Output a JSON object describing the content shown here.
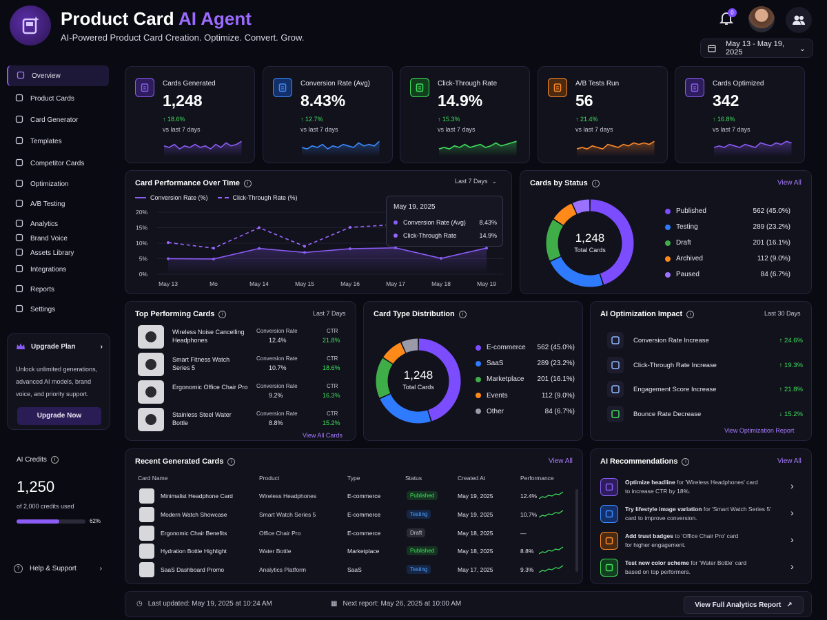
{
  "header": {
    "title_main": "Product Card ",
    "title_accent": "AI Agent",
    "subtitle": "AI-Powered Product Card Creation. Optimize. Convert. Grow.",
    "notification_count": "0",
    "date_range": "May 13 - May 19, 2025"
  },
  "sidebar": {
    "items": [
      {
        "label": "Overview",
        "icon": "home-icon"
      },
      {
        "label": "Product Cards",
        "icon": "cards-icon"
      },
      {
        "label": "Card Generator",
        "icon": "generator-icon"
      },
      {
        "label": "Templates",
        "icon": "templates-icon"
      },
      {
        "label": "Competitor Cards",
        "icon": "competitor-icon"
      },
      {
        "label": "Optimization",
        "icon": "optimization-icon"
      },
      {
        "label": "A/B Testing",
        "icon": "ab-test-icon"
      },
      {
        "label": "Analytics",
        "icon": "analytics-icon"
      },
      {
        "label": "Brand Voice",
        "icon": "brand-voice-icon"
      },
      {
        "label": "Assets Library",
        "icon": "assets-icon"
      },
      {
        "label": "Integrations",
        "icon": "integrations-icon"
      },
      {
        "label": "Reports",
        "icon": "reports-icon"
      },
      {
        "label": "Settings",
        "icon": "settings-icon"
      }
    ],
    "upgrade": {
      "title": "Upgrade Plan",
      "text": "Unlock unlimited generations, advanced AI models, brand voice, and priority support.",
      "button": "Upgrade Now"
    },
    "credits": {
      "title": "AI Credits",
      "value": "1,250",
      "sub": "of 2,000 credits used",
      "percent_label": "62%",
      "percent": 62
    },
    "help": "Help & Support"
  },
  "kpis": [
    {
      "label": "Cards Generated",
      "value": "1,248",
      "delta": "↑ 18.6%",
      "vs": "vs last 7 days",
      "color": "#8b5cf6",
      "bg": "#2d1d5c",
      "icon": "clipboard-icon"
    },
    {
      "label": "Conversion Rate (Avg)",
      "value": "8.43%",
      "delta": "↑ 12.7%",
      "vs": "vs last 7 days",
      "color": "#3b8bff",
      "bg": "#14306a",
      "icon": "clipboard-check-icon"
    },
    {
      "label": "Click-Through Rate",
      "value": "14.9%",
      "delta": "↑ 15.3%",
      "vs": "vs last 7 days",
      "color": "#3ee05a",
      "bg": "#12401f",
      "icon": "cursor-icon"
    },
    {
      "label": "A/B Tests Run",
      "value": "56",
      "delta": "↑ 21.4%",
      "vs": "vs last 7 days",
      "color": "#ff8a2a",
      "bg": "#4a2a10",
      "icon": "mail-icon"
    },
    {
      "label": "Cards Optimized",
      "value": "342",
      "delta": "↑ 16.8%",
      "vs": "vs last 7 days",
      "color": "#8b5cf6",
      "bg": "#2d1d5c",
      "icon": "shield-icon"
    }
  ],
  "performance": {
    "title": "Card Performance Over Time",
    "range": "Last 7 Days",
    "legend": [
      "Conversion Rate (%)",
      "Click-Through Rate (%)"
    ],
    "tooltip": {
      "date": "May 19, 2025",
      "rows": [
        [
          "Conversion Rate (Avg)",
          "8.43%"
        ],
        [
          "Click-Through Rate",
          "14.9%"
        ]
      ]
    }
  },
  "status": {
    "title": "Cards by Status",
    "view_all": "View All",
    "center_value": "1,248",
    "center_label": "Total Cards",
    "rows": [
      {
        "label": "Published",
        "value": "562 (45.0%)",
        "color": "#7c4dff"
      },
      {
        "label": "Testing",
        "value": "289 (23.2%)",
        "color": "#2f7bff"
      },
      {
        "label": "Draft",
        "value": "201 (16.1%)",
        "color": "#3fae48"
      },
      {
        "label": "Archived",
        "value": "112 (9.0%)",
        "color": "#ff8a1a"
      },
      {
        "label": "Paused",
        "value": "84 (6.7%)",
        "color": "#9a72ff"
      }
    ]
  },
  "top_cards": {
    "title": "Top Performing Cards",
    "range": "Last 7 Days",
    "conv_label": "Conversion Rate",
    "ctr_label": "CTR",
    "rows": [
      {
        "name": "Wireless Noise Cancelling Headphones",
        "conv": "12.4%",
        "ctr": "21.8%",
        "thumb": "headphones-thumb"
      },
      {
        "name": "Smart Fitness Watch Series 5",
        "conv": "10.7%",
        "ctr": "18.6%",
        "thumb": "watch-thumb"
      },
      {
        "name": "Ergonomic Office Chair Pro",
        "conv": "9.2%",
        "ctr": "16.3%",
        "thumb": "chair-thumb"
      },
      {
        "name": "Stainless Steel Water Bottle",
        "conv": "8.8%",
        "ctr": "15.2%",
        "thumb": "bottle-thumb"
      }
    ],
    "view_all": "View All Cards"
  },
  "type_dist": {
    "title": "Card Type Distribution",
    "center_value": "1,248",
    "center_label": "Total Cards",
    "rows": [
      {
        "label": "E-commerce",
        "value": "562 (45.0%)",
        "color": "#7c4dff"
      },
      {
        "label": "SaaS",
        "value": "289 (23.2%)",
        "color": "#2f7bff"
      },
      {
        "label": "Marketplace",
        "value": "201 (16.1%)",
        "color": "#3fae48"
      },
      {
        "label": "Events",
        "value": "112 (9.0%)",
        "color": "#ff8a1a"
      },
      {
        "label": "Other",
        "value": "84 (6.7%)",
        "color": "#9a9aa8"
      }
    ]
  },
  "impact": {
    "title": "AI Optimization Impact",
    "range": "Last 30 Days",
    "rows": [
      {
        "label": "Conversion Rate Increase",
        "value": "↑ 24.6%",
        "icon": "target-icon"
      },
      {
        "label": "Click-Through Rate Increase",
        "value": "↑ 19.3%",
        "icon": "click-icon"
      },
      {
        "label": "Engagement Score Increase",
        "value": "↑ 21.8%",
        "icon": "engagement-icon"
      },
      {
        "label": "Bounce Rate Decrease",
        "value": "↓ 15.2%",
        "icon": "bounce-icon"
      }
    ],
    "link": "View Optimization Report"
  },
  "recent": {
    "title": "Recent Generated Cards",
    "view_all": "View All",
    "headers": [
      "Card Name",
      "Product",
      "Type",
      "Status",
      "Created At",
      "Performance"
    ],
    "rows": [
      {
        "name": "Minimalist Headphone Card",
        "product": "Wireless Headphones",
        "type": "E-commerce",
        "status": "Published",
        "date": "May 19, 2025",
        "perf": "12.4%"
      },
      {
        "name": "Modern Watch Showcase",
        "product": "Smart Watch Series 5",
        "type": "E-commerce",
        "status": "Testing",
        "date": "May 19, 2025",
        "perf": "10.7%"
      },
      {
        "name": "Ergonomic Chair Benefits",
        "product": "Office Chair Pro",
        "type": "E-commerce",
        "status": "Draft",
        "date": "May 18, 2025",
        "perf": "—"
      },
      {
        "name": "Hydration Bottle Highlight",
        "product": "Water Bottle",
        "type": "Marketplace",
        "status": "Published",
        "date": "May 18, 2025",
        "perf": "8.8%"
      },
      {
        "name": "SaaS Dashboard Promo",
        "product": "Analytics Platform",
        "type": "SaaS",
        "status": "Testing",
        "date": "May 17, 2025",
        "perf": "9.3%"
      }
    ]
  },
  "recs": {
    "title": "AI Recommendations",
    "view_all": "View All",
    "rows": [
      {
        "bold": "Optimize headline",
        "rest": " for 'Wireless Headphones' card",
        "line2": "to increase CTR by 18%.",
        "color": "#8b5cf6",
        "bg": "#2d1d5c",
        "icon": "headline-icon"
      },
      {
        "bold": "Try lifestyle image variation",
        "rest": " for 'Smart Watch Series 5'",
        "line2": "card to improve conversion.",
        "color": "#3b8bff",
        "bg": "#14306a",
        "icon": "image-icon"
      },
      {
        "bold": "Add trust badges",
        "rest": " to 'Office Chair Pro' card",
        "line2": "for higher engagement.",
        "color": "#ff8a2a",
        "bg": "#4a2a10",
        "icon": "badge-icon"
      },
      {
        "bold": "Test new color scheme",
        "rest": " for 'Water Bottle' card",
        "line2": "based on top performers.",
        "color": "#3ee05a",
        "bg": "#12401f",
        "icon": "palette-icon"
      }
    ]
  },
  "footer": {
    "updated": "Last updated: May 19, 2025 at 10:24 AM",
    "next": "Next report: May 26, 2025 at 10:00 AM",
    "button": "View Full Analytics Report"
  },
  "chart_data": {
    "type": "line",
    "x": [
      "May 13",
      "Mo",
      "May 14",
      "May 15",
      "May 16",
      "May 17",
      "May 18",
      "May 19"
    ],
    "ylim": [
      0,
      20
    ],
    "yticks": [
      "20%",
      "15%",
      "10%",
      "5%",
      "0%"
    ],
    "series": [
      {
        "name": "Conversion Rate (%)",
        "values": [
          5.0,
          4.9,
          8.3,
          7.0,
          8.2,
          8.5,
          5.1,
          8.43
        ],
        "color": "#8b5cf6",
        "style": "solid"
      },
      {
        "name": "Click-Through Rate (%)",
        "values": [
          10.2,
          8.4,
          15.0,
          9.0,
          15.1,
          16.0,
          13.0,
          14.9
        ],
        "color": "#9a66ff",
        "style": "dashed"
      }
    ]
  }
}
